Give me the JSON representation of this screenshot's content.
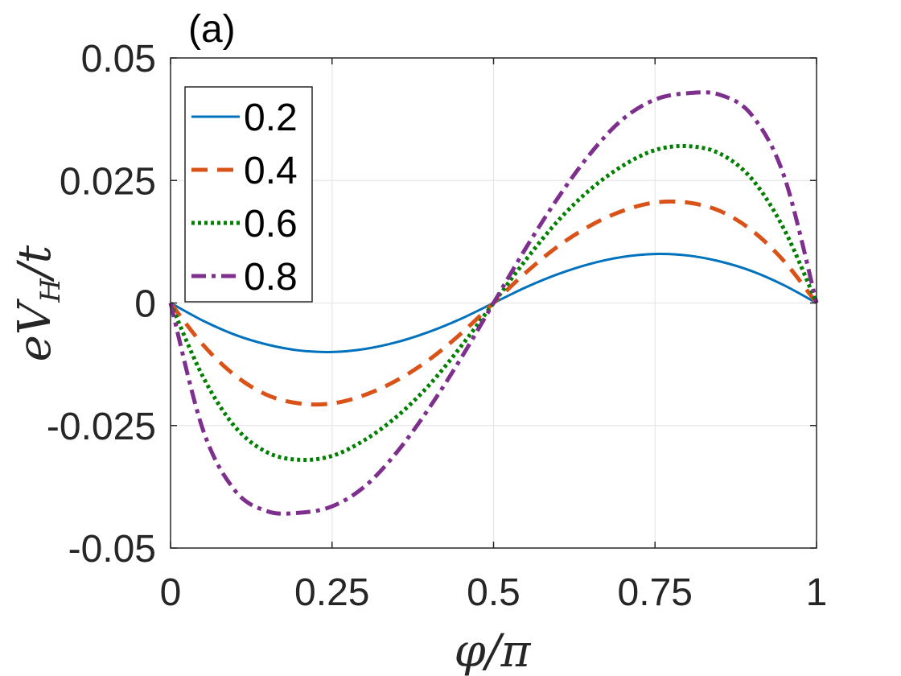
{
  "chart_data": {
    "type": "line",
    "panel_label": "(a)",
    "xlabel": "φ/π",
    "ylabel": {
      "base": "eV",
      "sub": "H",
      "tail": "/t"
    },
    "xlim": [
      0,
      1
    ],
    "ylim": [
      -0.05,
      0.05
    ],
    "xticks": [
      0,
      0.25,
      0.5,
      0.75,
      1
    ],
    "xtick_labels": [
      "0",
      "0.25",
      "0.5",
      "0.75",
      "1"
    ],
    "yticks": [
      -0.05,
      -0.025,
      0,
      0.025,
      0.05
    ],
    "ytick_labels": [
      "-0.05",
      "-0.025",
      "0",
      "0.025",
      "0.05"
    ],
    "grid": true,
    "legend_position": "top-left",
    "x": [
      0,
      0.05,
      0.1,
      0.15,
      0.2,
      0.25,
      0.3,
      0.35,
      0.4,
      0.45,
      0.5,
      0.55,
      0.6,
      0.65,
      0.7,
      0.75,
      0.8,
      0.85,
      0.9,
      0.95,
      1
    ],
    "series": [
      {
        "name": "0.2",
        "color": "#0072BD",
        "dash": "solid",
        "values": [
          0,
          -0.0036,
          -0.0065,
          -0.0085,
          -0.0097,
          -0.01,
          -0.0094,
          -0.008,
          -0.0059,
          -0.0032,
          0,
          0.0032,
          0.0059,
          0.008,
          0.0094,
          0.01,
          0.0097,
          0.0085,
          0.0065,
          0.0036,
          0
        ]
      },
      {
        "name": "0.4",
        "color": "#D95319",
        "dash": "dashed",
        "values": [
          0,
          -0.0085,
          -0.0148,
          -0.0188,
          -0.0205,
          -0.0205,
          -0.0188,
          -0.0158,
          -0.0116,
          -0.0062,
          0,
          0.0062,
          0.0116,
          0.0158,
          0.0188,
          0.0205,
          0.0205,
          0.0188,
          0.0148,
          0.0085,
          0
        ]
      },
      {
        "name": "0.6",
        "color": "#008000",
        "dash": "dotted",
        "values": [
          0,
          -0.015,
          -0.0253,
          -0.0305,
          -0.032,
          -0.0312,
          -0.028,
          -0.0232,
          -0.0168,
          -0.0088,
          0,
          0.0088,
          0.0168,
          0.0232,
          0.028,
          0.0312,
          0.032,
          0.0305,
          0.0253,
          0.015,
          0
        ]
      },
      {
        "name": "0.8",
        "color": "#7E2F8E",
        "dash": "dashdot",
        "values": [
          0,
          -0.0258,
          -0.0383,
          -0.0425,
          -0.0428,
          -0.0415,
          -0.0375,
          -0.0305,
          -0.0215,
          -0.0112,
          0,
          0.0112,
          0.0215,
          0.0305,
          0.0375,
          0.0415,
          0.0428,
          0.0425,
          0.0383,
          0.0258,
          0
        ]
      }
    ]
  }
}
